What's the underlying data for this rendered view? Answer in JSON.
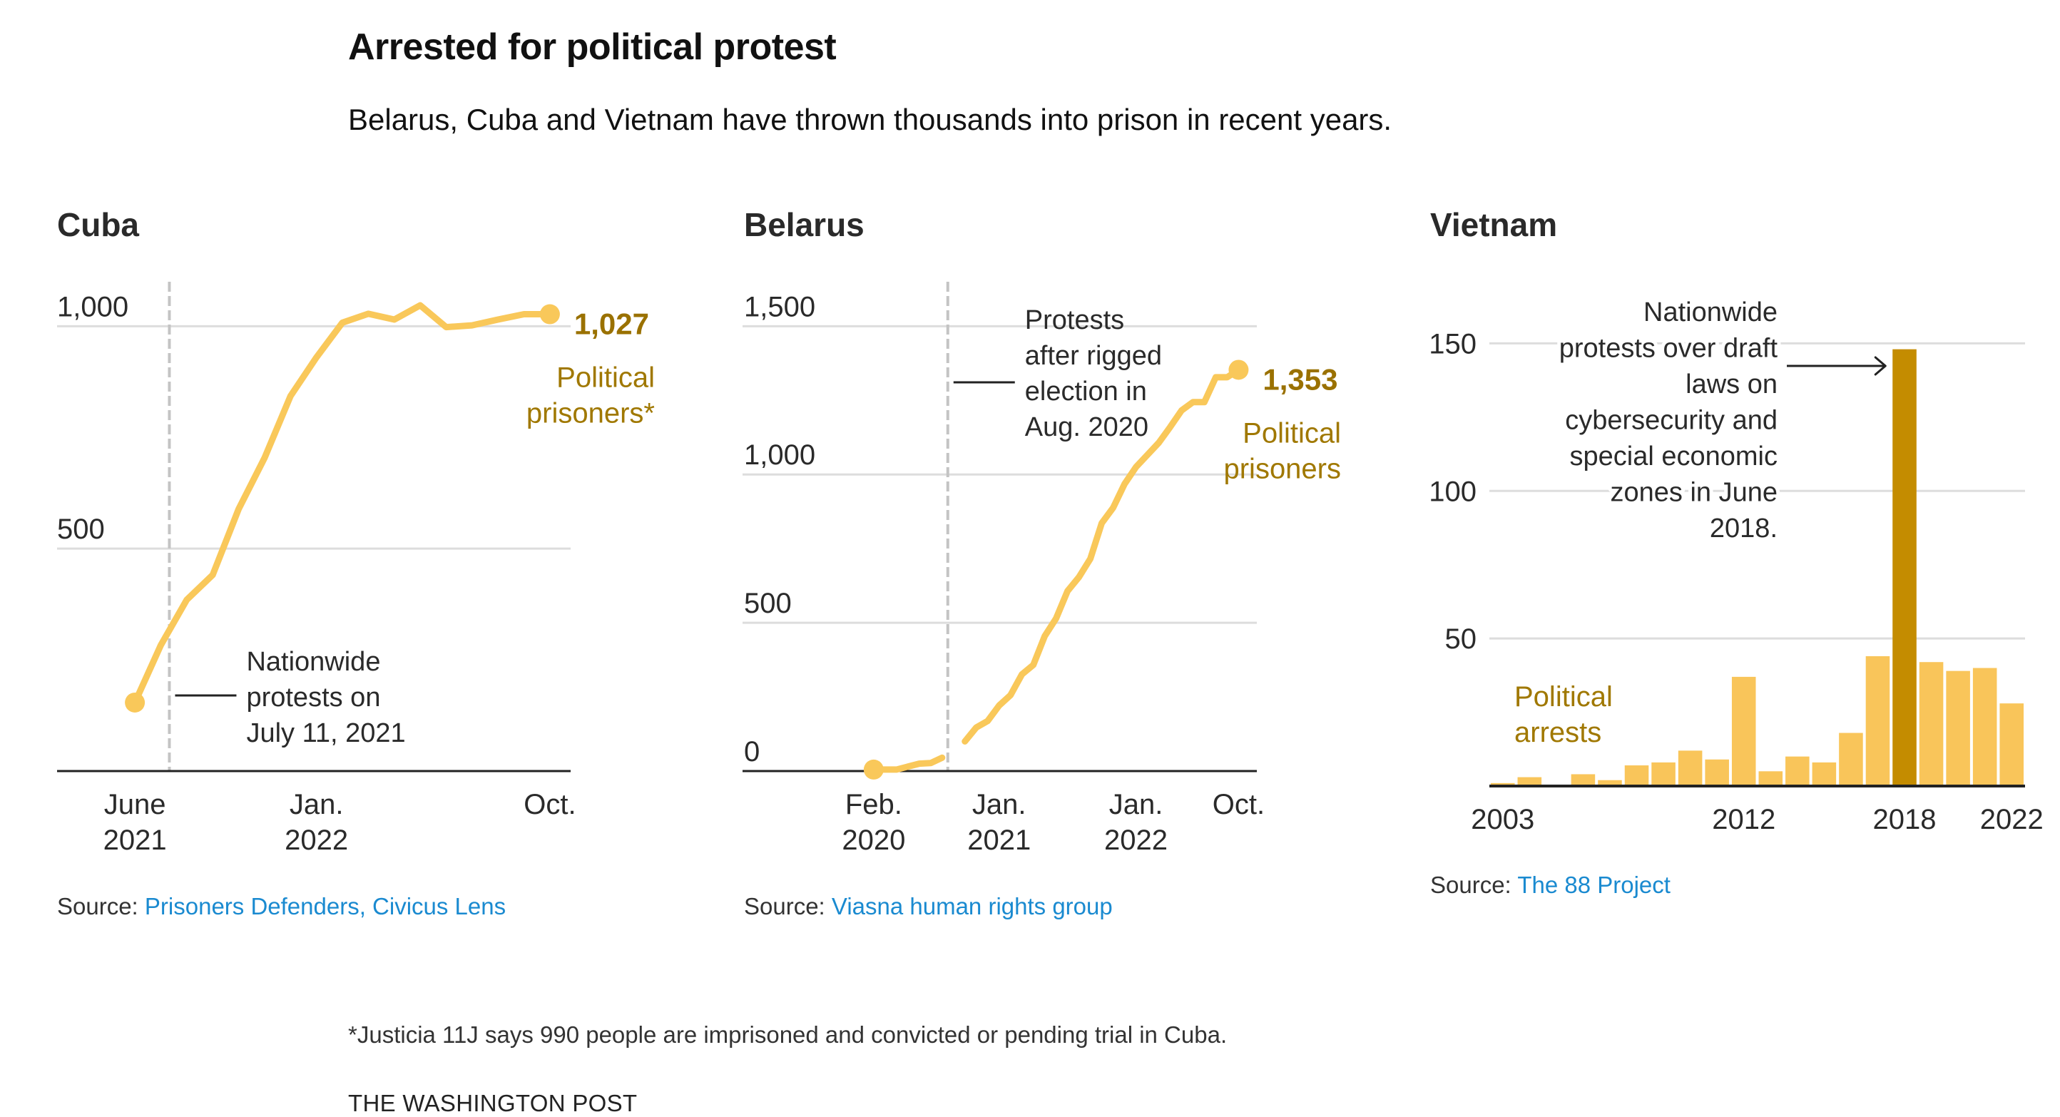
{
  "header": {
    "title": "Arrested for political protest",
    "subtitle": "Belarus, Cuba and Vietnam have thrown thousands into prison in recent years."
  },
  "colors": {
    "line": "#f9c85a",
    "bar": "#f9c55a",
    "bar_highlight": "#c48c00",
    "label_gold": "#9a7100",
    "grid": "#dddddd",
    "axis": "#222222",
    "event_line": "#c4c4c4",
    "link": "#1a8ad0"
  },
  "footer": {
    "footnote": "*Justicia 11J says 990 people are imprisoned and convicted or pending trial in Cuba.",
    "credit": "THE WASHINGTON POST"
  },
  "chart_data": [
    {
      "id": "cuba",
      "type": "line",
      "title": "Cuba",
      "series_label": [
        "Political",
        "prisoners*"
      ],
      "end_value_label": "1,027",
      "ylim": [
        0,
        1100
      ],
      "yticks": [
        {
          "v": 500,
          "label": "500"
        },
        {
          "v": 1000,
          "label": "1,000"
        }
      ],
      "x_unit": "month index from June 2021",
      "xlim": [
        -3,
        16.8
      ],
      "xticks": [
        {
          "x": 0,
          "lines": [
            "June",
            "2021"
          ]
        },
        {
          "x": 7,
          "lines": [
            "Jan.",
            "2022"
          ]
        },
        {
          "x": 16,
          "lines": [
            "Oct."
          ]
        }
      ],
      "x": [
        0,
        1,
        2,
        3,
        4,
        5,
        6,
        7,
        8,
        9,
        10,
        11,
        12,
        13,
        14,
        15,
        16
      ],
      "x_labels": [
        "Jun 2021",
        "Jul 2021",
        "Aug 2021",
        "Sep 2021",
        "Oct 2021",
        "Nov 2021",
        "Dec 2021",
        "Jan 2022",
        "Feb 2022",
        "Mar 2022",
        "Apr 2022",
        "May 2022",
        "Jun 2022",
        "Jul 2022",
        "Aug 2022",
        "Sep 2022",
        "Oct 2022"
      ],
      "values": [
        154,
        283,
        385,
        441,
        589,
        704,
        843,
        930,
        1008,
        1028,
        1015,
        1047,
        998,
        1002,
        1015,
        1027,
        1027
      ],
      "event": {
        "x": 1.33,
        "label": [
          "Nationwide",
          "protests on",
          "July 11, 2021"
        ]
      },
      "source_prefix": "Source: ",
      "source_link": "Prisoners Defenders, Civicus Lens"
    },
    {
      "id": "belarus",
      "type": "line",
      "title": "Belarus",
      "series_label": [
        "Political",
        "prisoners"
      ],
      "end_value_label": "1,353",
      "ylim": [
        0,
        1650
      ],
      "yticks": [
        {
          "v": 0,
          "label": "0"
        },
        {
          "v": 500,
          "label": "500"
        },
        {
          "v": 1000,
          "label": "1,000"
        },
        {
          "v": 1500,
          "label": "1,500"
        }
      ],
      "x_unit": "month index from Feb. 2020",
      "xlim": [
        -11.5,
        33.6
      ],
      "xticks": [
        {
          "x": 0,
          "lines": [
            "Feb.",
            "2020"
          ]
        },
        {
          "x": 11,
          "lines": [
            "Jan.",
            "2021"
          ]
        },
        {
          "x": 23,
          "lines": [
            "Jan.",
            "2022"
          ]
        },
        {
          "x": 32,
          "lines": [
            "Oct."
          ]
        }
      ],
      "x": [
        0,
        1,
        2,
        3,
        4,
        5,
        6,
        7,
        8,
        9,
        10,
        11,
        12,
        13,
        14,
        15,
        16,
        17,
        18,
        19,
        20,
        21,
        22,
        23,
        24,
        25,
        26,
        27,
        28,
        29,
        30,
        31,
        32
      ],
      "x_labels": [
        "Feb 2020",
        "Mar 2020",
        "Apr 2020",
        "May 2020",
        "Jun 2020",
        "Jul 2020",
        "Aug 2020",
        "Sep 2020",
        "Oct 2020",
        "Nov 2020",
        "Dec 2020",
        "Jan 2021",
        "Feb 2021",
        "Mar 2021",
        "Apr 2021",
        "May 2021",
        "Jun 2021",
        "Jul 2021",
        "Aug 2021",
        "Sep 2021",
        "Oct 2021",
        "Nov 2021",
        "Dec 2021",
        "Jan 2022",
        "Feb 2022",
        "Mar 2022",
        "Apr 2022",
        "May 2022",
        "Jun 2022",
        "Jul 2022",
        "Aug 2022",
        "Sep 2022",
        "Oct 2022"
      ],
      "values": [
        5,
        5,
        5,
        15,
        25,
        27,
        45,
        null,
        100,
        147,
        169,
        221,
        256,
        326,
        358,
        455,
        515,
        607,
        654,
        716,
        836,
        888,
        968,
        1025,
        1066,
        1107,
        1160,
        1216,
        1244,
        1244,
        1328,
        1328,
        1353
      ],
      "event": {
        "x": 6.5,
        "label": [
          "Protests",
          "after rigged",
          "election in",
          "Aug. 2020"
        ]
      },
      "source_prefix": "Source: ",
      "source_link": "Viasna human rights group"
    },
    {
      "id": "vietnam",
      "type": "bar",
      "title": "Vietnam",
      "series_label": [
        "Political",
        "arrests"
      ],
      "ylim": [
        0,
        160
      ],
      "yticks": [
        {
          "v": 50,
          "label": "50"
        },
        {
          "v": 100,
          "label": "100"
        },
        {
          "v": 150,
          "label": "150"
        }
      ],
      "categories": [
        "2003",
        "2004",
        "2005",
        "2006",
        "2007",
        "2008",
        "2009",
        "2010",
        "2011",
        "2012",
        "2013",
        "2014",
        "2015",
        "2016",
        "2017",
        "2018",
        "2019",
        "2020",
        "2021",
        "2022"
      ],
      "values": [
        1,
        3,
        0,
        4,
        2,
        7,
        8,
        12,
        9,
        37,
        5,
        10,
        8,
        18,
        44,
        148,
        42,
        39,
        40,
        28
      ],
      "highlight": "2018",
      "xtick_labels": [
        "2003",
        "2012",
        "2018",
        "2022"
      ],
      "annotation": [
        "Nationwide",
        "protests over draft",
        "laws on",
        "cybersecurity and",
        "special economic",
        "zones in June",
        "2018."
      ],
      "source_prefix": "Source: ",
      "source_link": "The 88 Project"
    }
  ]
}
